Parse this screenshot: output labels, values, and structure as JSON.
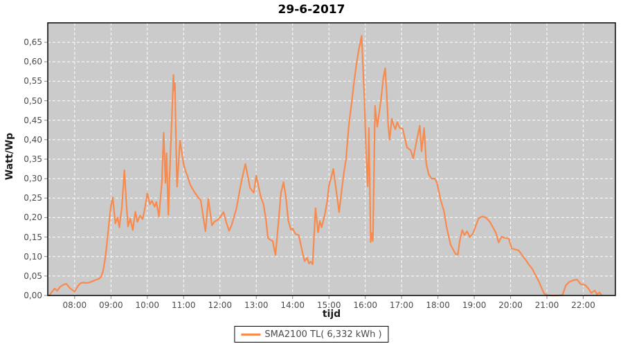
{
  "title": "29-6-2017",
  "axes": {
    "y_label": "Watt/Wp",
    "x_label": "tijd"
  },
  "legend": {
    "label": "SMA2100 TL( 6,332 kWh )"
  },
  "colors": {
    "line": "#f98a4d",
    "plot_bg": "#cbcbcb",
    "grid": "#ffffff",
    "tick": "#8a8a8a",
    "border": "#000000",
    "tick_text": "#4a4a4a"
  },
  "chart_data": {
    "type": "line",
    "title": "29-6-2017",
    "xlabel": "tijd",
    "ylabel": "Watt/Wp",
    "xlim": [
      7.26,
      22.885
    ],
    "ylim": [
      0,
      0.7
    ],
    "grid": "white dashed, hourly vertical lines and 0.05 horizontal lines",
    "legend_position": "bottom center",
    "x_ticks": [
      {
        "h": 8,
        "label": "08:00"
      },
      {
        "h": 9,
        "label": "09:00"
      },
      {
        "h": 10,
        "label": "10:00"
      },
      {
        "h": 11,
        "label": "11:00"
      },
      {
        "h": 12,
        "label": "12:00"
      },
      {
        "h": 13,
        "label": "13:00"
      },
      {
        "h": 14,
        "label": "14:00"
      },
      {
        "h": 15,
        "label": "15:00"
      },
      {
        "h": 16,
        "label": "16:00"
      },
      {
        "h": 17,
        "label": "17:00"
      },
      {
        "h": 18,
        "label": "18:00"
      },
      {
        "h": 19,
        "label": "19:00"
      },
      {
        "h": 20,
        "label": "20:00"
      },
      {
        "h": 21,
        "label": "21:00"
      },
      {
        "h": 22,
        "label": "22:00"
      }
    ],
    "y_ticks": [
      {
        "v": 0.0,
        "label": "0,00"
      },
      {
        "v": 0.05,
        "label": "0,05"
      },
      {
        "v": 0.1,
        "label": "0,10"
      },
      {
        "v": 0.15,
        "label": "0,15"
      },
      {
        "v": 0.2,
        "label": "0,20"
      },
      {
        "v": 0.25,
        "label": "0,25"
      },
      {
        "v": 0.3,
        "label": "0,30"
      },
      {
        "v": 0.35,
        "label": "0,35"
      },
      {
        "v": 0.4,
        "label": "0,40"
      },
      {
        "v": 0.45,
        "label": "0,45"
      },
      {
        "v": 0.5,
        "label": "0,50"
      },
      {
        "v": 0.55,
        "label": "0,55"
      },
      {
        "v": 0.6,
        "label": "0,60"
      },
      {
        "v": 0.65,
        "label": "0,65"
      }
    ],
    "series": [
      {
        "name": "SMA2100 TL( 6,332 kWh )",
        "color": "#f98a4d",
        "points": [
          [
            7.3,
            0.0
          ],
          [
            7.38,
            0.01
          ],
          [
            7.45,
            0.018
          ],
          [
            7.52,
            0.012
          ],
          [
            7.6,
            0.022
          ],
          [
            7.7,
            0.028
          ],
          [
            7.77,
            0.03
          ],
          [
            7.88,
            0.018
          ],
          [
            8.0,
            0.01
          ],
          [
            8.1,
            0.026
          ],
          [
            8.17,
            0.032
          ],
          [
            8.25,
            0.033
          ],
          [
            8.33,
            0.032
          ],
          [
            8.42,
            0.034
          ],
          [
            8.5,
            0.037
          ],
          [
            8.58,
            0.04
          ],
          [
            8.67,
            0.043
          ],
          [
            8.73,
            0.048
          ],
          [
            8.78,
            0.062
          ],
          [
            8.85,
            0.1
          ],
          [
            8.92,
            0.162
          ],
          [
            8.97,
            0.207
          ],
          [
            9.0,
            0.23
          ],
          [
            9.05,
            0.252
          ],
          [
            9.12,
            0.185
          ],
          [
            9.18,
            0.2
          ],
          [
            9.23,
            0.175
          ],
          [
            9.3,
            0.228
          ],
          [
            9.37,
            0.322
          ],
          [
            9.43,
            0.228
          ],
          [
            9.47,
            0.177
          ],
          [
            9.53,
            0.198
          ],
          [
            9.6,
            0.168
          ],
          [
            9.67,
            0.215
          ],
          [
            9.73,
            0.189
          ],
          [
            9.8,
            0.205
          ],
          [
            9.87,
            0.196
          ],
          [
            9.93,
            0.222
          ],
          [
            10.0,
            0.262
          ],
          [
            10.07,
            0.234
          ],
          [
            10.13,
            0.243
          ],
          [
            10.2,
            0.228
          ],
          [
            10.25,
            0.24
          ],
          [
            10.32,
            0.203
          ],
          [
            10.4,
            0.29
          ],
          [
            10.45,
            0.418
          ],
          [
            10.5,
            0.289
          ],
          [
            10.53,
            0.365
          ],
          [
            10.58,
            0.207
          ],
          [
            10.63,
            0.35
          ],
          [
            10.67,
            0.445
          ],
          [
            10.72,
            0.566
          ],
          [
            10.74,
            0.527
          ],
          [
            10.76,
            0.545
          ],
          [
            10.79,
            0.39
          ],
          [
            10.82,
            0.279
          ],
          [
            10.9,
            0.398
          ],
          [
            11.0,
            0.337
          ],
          [
            11.05,
            0.32
          ],
          [
            11.1,
            0.309
          ],
          [
            11.18,
            0.285
          ],
          [
            11.28,
            0.268
          ],
          [
            11.4,
            0.252
          ],
          [
            11.47,
            0.245
          ],
          [
            11.6,
            0.165
          ],
          [
            11.68,
            0.248
          ],
          [
            11.78,
            0.18
          ],
          [
            11.85,
            0.19
          ],
          [
            11.92,
            0.193
          ],
          [
            12.0,
            0.2
          ],
          [
            12.1,
            0.214
          ],
          [
            12.18,
            0.186
          ],
          [
            12.25,
            0.166
          ],
          [
            12.32,
            0.18
          ],
          [
            12.45,
            0.222
          ],
          [
            12.58,
            0.288
          ],
          [
            12.7,
            0.338
          ],
          [
            12.83,
            0.276
          ],
          [
            12.93,
            0.264
          ],
          [
            13.0,
            0.308
          ],
          [
            13.05,
            0.285
          ],
          [
            13.12,
            0.255
          ],
          [
            13.2,
            0.234
          ],
          [
            13.27,
            0.193
          ],
          [
            13.32,
            0.148
          ],
          [
            13.38,
            0.143
          ],
          [
            13.45,
            0.14
          ],
          [
            13.53,
            0.104
          ],
          [
            13.62,
            0.199
          ],
          [
            13.68,
            0.264
          ],
          [
            13.75,
            0.291
          ],
          [
            13.82,
            0.249
          ],
          [
            13.88,
            0.193
          ],
          [
            13.95,
            0.169
          ],
          [
            14.0,
            0.172
          ],
          [
            14.08,
            0.158
          ],
          [
            14.17,
            0.155
          ],
          [
            14.25,
            0.12
          ],
          [
            14.33,
            0.088
          ],
          [
            14.4,
            0.097
          ],
          [
            14.45,
            0.082
          ],
          [
            14.5,
            0.087
          ],
          [
            14.55,
            0.08
          ],
          [
            14.63,
            0.224
          ],
          [
            14.7,
            0.162
          ],
          [
            14.75,
            0.191
          ],
          [
            14.8,
            0.175
          ],
          [
            14.88,
            0.205
          ],
          [
            14.95,
            0.24
          ],
          [
            15.0,
            0.282
          ],
          [
            15.08,
            0.31
          ],
          [
            15.12,
            0.325
          ],
          [
            15.2,
            0.27
          ],
          [
            15.28,
            0.214
          ],
          [
            15.35,
            0.27
          ],
          [
            15.42,
            0.32
          ],
          [
            15.47,
            0.35
          ],
          [
            15.55,
            0.44
          ],
          [
            15.62,
            0.49
          ],
          [
            15.68,
            0.54
          ],
          [
            15.75,
            0.59
          ],
          [
            15.82,
            0.63
          ],
          [
            15.9,
            0.667
          ],
          [
            15.97,
            0.52
          ],
          [
            16.03,
            0.35
          ],
          [
            16.07,
            0.28
          ],
          [
            16.1,
            0.43
          ],
          [
            16.13,
            0.25
          ],
          [
            16.15,
            0.137
          ],
          [
            16.18,
            0.16
          ],
          [
            16.21,
            0.14
          ],
          [
            16.27,
            0.487
          ],
          [
            16.33,
            0.433
          ],
          [
            16.43,
            0.5
          ],
          [
            16.5,
            0.56
          ],
          [
            16.55,
            0.584
          ],
          [
            16.6,
            0.5
          ],
          [
            16.63,
            0.44
          ],
          [
            16.67,
            0.4
          ],
          [
            16.73,
            0.454
          ],
          [
            16.78,
            0.437
          ],
          [
            16.83,
            0.427
          ],
          [
            16.88,
            0.445
          ],
          [
            16.95,
            0.43
          ],
          [
            17.03,
            0.428
          ],
          [
            17.15,
            0.38
          ],
          [
            17.25,
            0.373
          ],
          [
            17.32,
            0.352
          ],
          [
            17.4,
            0.39
          ],
          [
            17.5,
            0.436
          ],
          [
            17.55,
            0.37
          ],
          [
            17.62,
            0.43
          ],
          [
            17.68,
            0.338
          ],
          [
            17.75,
            0.31
          ],
          [
            17.83,
            0.3
          ],
          [
            17.92,
            0.3
          ],
          [
            17.98,
            0.287
          ],
          [
            18.07,
            0.247
          ],
          [
            18.17,
            0.215
          ],
          [
            18.23,
            0.18
          ],
          [
            18.3,
            0.15
          ],
          [
            18.35,
            0.13
          ],
          [
            18.42,
            0.118
          ],
          [
            18.48,
            0.107
          ],
          [
            18.55,
            0.105
          ],
          [
            18.6,
            0.14
          ],
          [
            18.67,
            0.168
          ],
          [
            18.73,
            0.155
          ],
          [
            18.8,
            0.165
          ],
          [
            18.88,
            0.15
          ],
          [
            18.97,
            0.16
          ],
          [
            19.0,
            0.168
          ],
          [
            19.12,
            0.198
          ],
          [
            19.22,
            0.203
          ],
          [
            19.32,
            0.2
          ],
          [
            19.43,
            0.189
          ],
          [
            19.52,
            0.174
          ],
          [
            19.6,
            0.16
          ],
          [
            19.67,
            0.136
          ],
          [
            19.75,
            0.151
          ],
          [
            19.83,
            0.148
          ],
          [
            19.95,
            0.146
          ],
          [
            20.03,
            0.121
          ],
          [
            20.13,
            0.118
          ],
          [
            20.22,
            0.116
          ],
          [
            20.32,
            0.103
          ],
          [
            20.42,
            0.091
          ],
          [
            20.5,
            0.08
          ],
          [
            20.6,
            0.068
          ],
          [
            20.68,
            0.053
          ],
          [
            20.78,
            0.036
          ],
          [
            20.85,
            0.02
          ],
          [
            20.92,
            0.005
          ],
          [
            21.0,
            0.001
          ],
          [
            21.1,
            0.0
          ],
          [
            21.2,
            0.0
          ],
          [
            21.3,
            0.0
          ],
          [
            21.43,
            0.001
          ],
          [
            21.52,
            0.026
          ],
          [
            21.62,
            0.035
          ],
          [
            21.73,
            0.039
          ],
          [
            21.83,
            0.041
          ],
          [
            21.93,
            0.029
          ],
          [
            22.05,
            0.027
          ],
          [
            22.15,
            0.017
          ],
          [
            22.22,
            0.006
          ],
          [
            22.32,
            0.013
          ],
          [
            22.38,
            0.003
          ],
          [
            22.45,
            0.008
          ],
          [
            22.5,
            0.001
          ]
        ]
      }
    ]
  }
}
